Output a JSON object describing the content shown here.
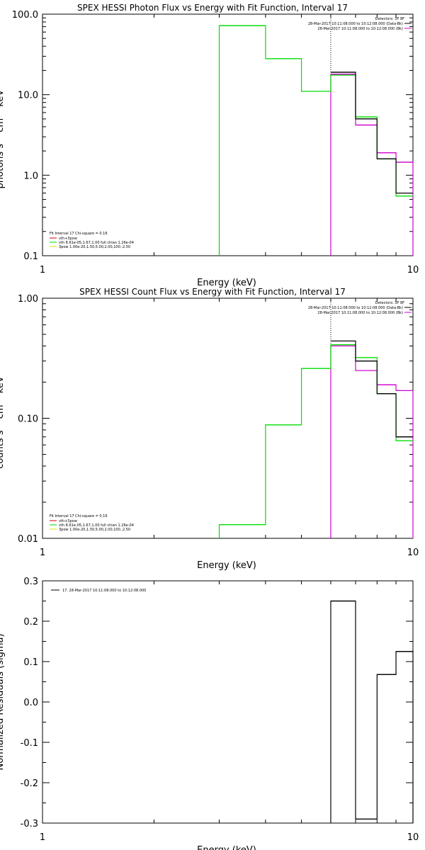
{
  "colors": {
    "background": "#ffffff",
    "axes": "#000000",
    "data": "#000000",
    "fit_total": "#d000d0",
    "fit_vth": "#00dd00",
    "fit_3pow": "#e0e000",
    "background_fit": "#d00000"
  },
  "chart_data": [
    {
      "type": "line",
      "id": "photon",
      "title": "SPEX HESSI Photon Flux vs Energy with Fit Function, Interval 17",
      "xlabel": "Energy (keV)",
      "ylabel": "photons s⁻¹ cm⁻² keV⁻¹",
      "xscale": "log",
      "yscale": "log",
      "xlim": [
        1,
        10
      ],
      "ylim": [
        0.1,
        100
      ],
      "xticks": [
        {
          "v": 1,
          "label": "1"
        },
        {
          "v": 10,
          "label": "10"
        }
      ],
      "yticks": [
        {
          "v": 100,
          "label": "100.0"
        },
        {
          "v": 10,
          "label": "10.0"
        },
        {
          "v": 1,
          "label": "1.0"
        },
        {
          "v": 0.1,
          "label": "0.1"
        }
      ],
      "legend_top": {
        "title": "Detectors: 3F 8F",
        "entries": [
          {
            "text": "28-Mar-2017 10:11:08.000 to 10:12:08.000 (Data-Bk)",
            "color": "#000000"
          },
          {
            "text": "28-Mar-2017 10:11:08.000 to 10:12:08.000 (Bk)",
            "color": "#d000d0"
          }
        ]
      },
      "legend_bottom": {
        "title": "Fit Interval 17   Chi-square = 0.16",
        "entries": [
          {
            "text": "vth+3pow",
            "color": "#d00000"
          },
          {
            "text": "vth 8.61e-05,1.67,1.00  full chian 1.26e-04",
            "color": "#00dd00"
          },
          {
            "text": "3pow 1.00e-20,1.50,5.00,2.00,100.,2.50",
            "color": "#e0e000"
          }
        ]
      },
      "vline_x": 6,
      "green_step": {
        "edges": [
          3,
          4,
          5,
          6,
          7,
          8,
          9,
          10
        ],
        "values": [
          72,
          28,
          11,
          17.5,
          5.3,
          1.6,
          0.55
        ]
      },
      "data_step": {
        "edges": [
          6,
          7,
          8,
          9,
          10
        ],
        "values": [
          19,
          5.0,
          1.6,
          0.6
        ]
      },
      "bk_step": {
        "edges": [
          6,
          7,
          8,
          9,
          10
        ],
        "values": [
          18,
          4.2,
          1.9,
          1.45
        ]
      }
    },
    {
      "type": "line",
      "id": "count",
      "title": "SPEX HESSI Count Flux vs Energy with Fit Function, Interval 17",
      "xlabel": "Energy (keV)",
      "ylabel": "counts s⁻¹ cm⁻² keV⁻¹",
      "xscale": "log",
      "yscale": "log",
      "xlim": [
        1,
        10
      ],
      "ylim": [
        0.01,
        1
      ],
      "xticks": [
        {
          "v": 1,
          "label": "1"
        },
        {
          "v": 10,
          "label": "10"
        }
      ],
      "yticks": [
        {
          "v": 1,
          "label": "1.00"
        },
        {
          "v": 0.1,
          "label": "0.10"
        },
        {
          "v": 0.01,
          "label": "0.01"
        }
      ],
      "legend_top": {
        "title": "Detectors: 3F 8F",
        "entries": [
          {
            "text": "28-Mar-2017 10:11:08.000 to 10:12:08.000 (Data-Bk)",
            "color": "#000000"
          },
          {
            "text": "28-Mar-2017 10:11:08.000 to 10:12:08.000 (Bk)",
            "color": "#d000d0"
          }
        ]
      },
      "legend_bottom": {
        "title": "Fit Interval 17   Chi-square = 0.16",
        "entries": [
          {
            "text": "vth+3pow",
            "color": "#d00000"
          },
          {
            "text": "vth 8.61e-05,1.67,1.00  full chian 1.26e-04",
            "color": "#00dd00"
          },
          {
            "text": "3pow 1.00e-20,1.50,5.00,2.00,100.,2.50",
            "color": "#e0e000"
          }
        ]
      },
      "vline_x": 6,
      "green_step": {
        "edges": [
          3,
          4,
          5,
          6,
          7,
          8,
          9,
          10
        ],
        "values": [
          0.013,
          0.088,
          0.26,
          0.41,
          0.32,
          0.16,
          0.065
        ]
      },
      "data_step": {
        "edges": [
          6,
          7,
          8,
          9,
          10
        ],
        "values": [
          0.44,
          0.3,
          0.16,
          0.07
        ]
      },
      "bk_step": {
        "edges": [
          6,
          7,
          8,
          9,
          10
        ],
        "values": [
          0.4,
          0.25,
          0.19,
          0.17
        ]
      }
    },
    {
      "type": "line",
      "id": "resid",
      "title": "",
      "xlabel": "Energy (keV)",
      "ylabel": "Normalized Residuals (sigma)",
      "xscale": "log",
      "yscale": "linear",
      "xlim": [
        1,
        10
      ],
      "ylim": [
        -0.3,
        0.3
      ],
      "xticks": [
        {
          "v": 1,
          "label": "1"
        },
        {
          "v": 10,
          "label": "10"
        }
      ],
      "yticks": [
        {
          "v": 0.3,
          "label": "0.3"
        },
        {
          "v": 0.2,
          "label": "0.2"
        },
        {
          "v": 0.1,
          "label": "0.1"
        },
        {
          "v": 0.0,
          "label": "0.0"
        },
        {
          "v": -0.1,
          "label": "-0.1"
        },
        {
          "v": -0.2,
          "label": "-0.2"
        },
        {
          "v": -0.3,
          "label": "-0.3"
        }
      ],
      "legend_text": "17. 28-Mar-2017 10:11:08.000 to 10:12:08.000",
      "resid_step": {
        "edges": [
          6,
          7,
          8,
          9,
          10
        ],
        "values": [
          0.25,
          -0.29,
          0.068,
          0.125
        ]
      }
    }
  ]
}
